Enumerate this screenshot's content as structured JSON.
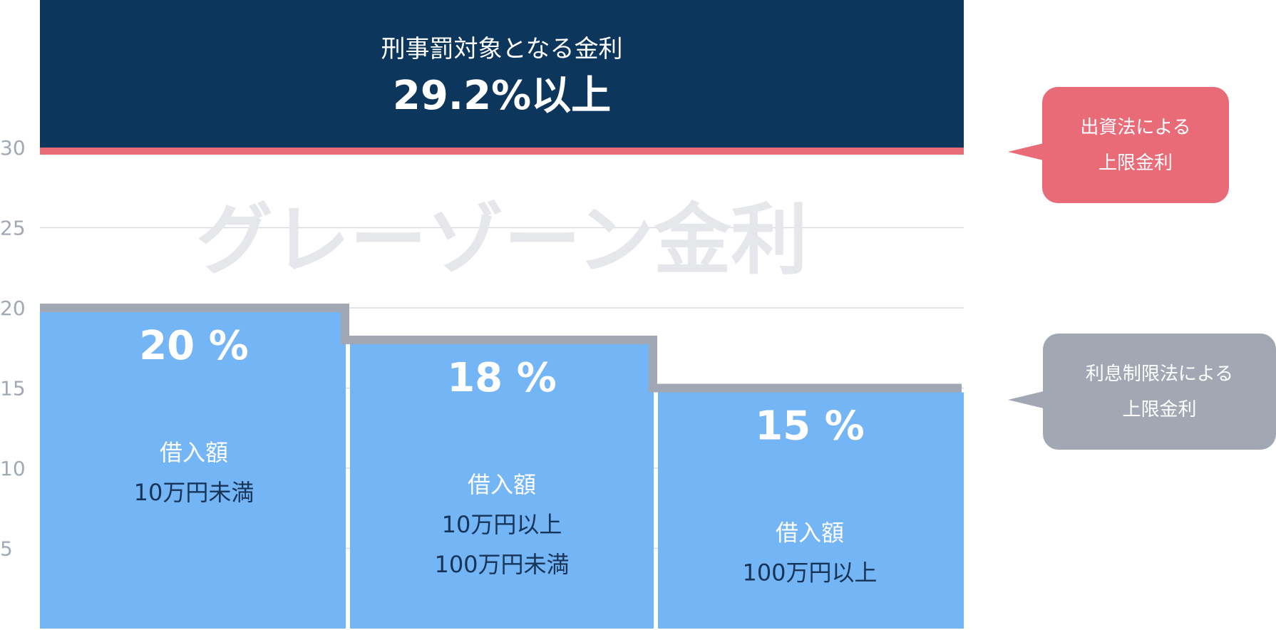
{
  "colors": {
    "navy": "#0d365c",
    "pink": "#e96b78",
    "blue": "#74b5f6",
    "gray": "#a1a8b3",
    "axis_text": "#a3a9b4",
    "grid": "#d9dde2",
    "watermark": "#e5e7ea",
    "white": "#ffffff",
    "dark_text": "#173456"
  },
  "header": {
    "line1": "刑事罰対象となる金利",
    "line2": "29.2%以上"
  },
  "watermark": "グレーゾーン金利",
  "callouts": {
    "investment_law": {
      "line1": "出資法による",
      "line2": "上限金利"
    },
    "interest_law": {
      "line1": "利息制限法による",
      "line2": "上限金利"
    }
  },
  "chart_data": {
    "type": "bar",
    "y_ticks": [
      5,
      10,
      15,
      20,
      25,
      30
    ],
    "ylim": [
      0,
      30
    ],
    "reference_line": 29.2,
    "bars": [
      {
        "value": 20,
        "label": "20 %",
        "text": [
          "借入額",
          "10万円未満"
        ]
      },
      {
        "value": 18,
        "label": "18 %",
        "text": [
          "借入額",
          "10万円以上",
          "100万円未満"
        ]
      },
      {
        "value": 15,
        "label": "15 %",
        "text": [
          "借入額",
          "100万円以上"
        ]
      }
    ]
  }
}
